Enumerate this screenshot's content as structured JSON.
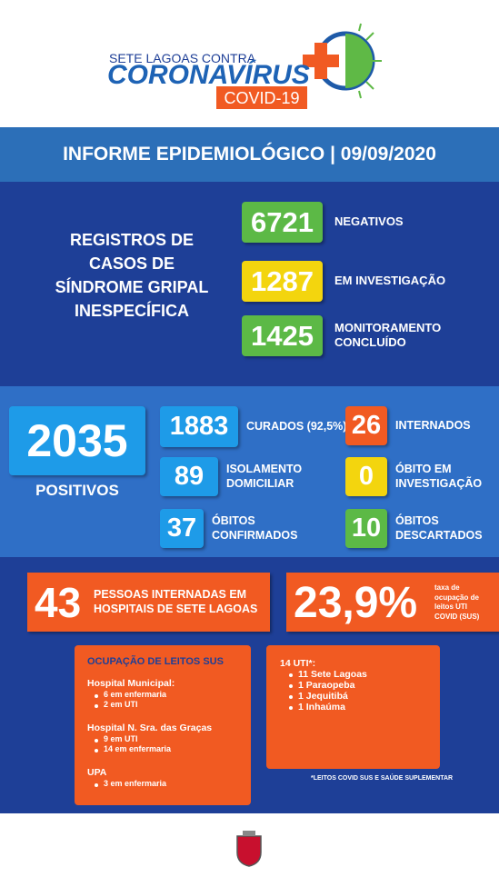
{
  "header": {
    "line1": "SETE LAGOAS CONTRA",
    "brand": "CORONAVÍRUS",
    "tag": "COVID-19"
  },
  "title": "INFORME EPIDEMIOLÓGICO | 09/09/2020",
  "registros": {
    "heading": [
      "REGISTROS DE",
      "CASOS DE",
      "SÍNDROME GRIPAL",
      "INESPECÍFICA"
    ],
    "items": [
      {
        "value": 6721,
        "label": [
          "NEGATIVOS"
        ]
      },
      {
        "value": 1287,
        "label": [
          "EM INVESTIGAÇÃO"
        ]
      },
      {
        "value": 1425,
        "label": [
          "MONITORAMENTO",
          "CONCLUÍDO"
        ]
      }
    ]
  },
  "positivos": {
    "total": {
      "value": 2035,
      "label": "POSITIVOS"
    },
    "items": [
      {
        "value": 1883,
        "label": [
          "CURADOS (92,5%)"
        ]
      },
      {
        "value": 89,
        "label": [
          "ISOLAMENTO",
          "DOMICILIAR"
        ]
      },
      {
        "value": 37,
        "label": [
          "ÓBITOS",
          "CONFIRMADOS"
        ]
      },
      {
        "value": 26,
        "label": [
          "INTERNADOS"
        ]
      },
      {
        "value": 0,
        "label": [
          "ÓBITO EM",
          "INVESTIGAÇÃO"
        ]
      },
      {
        "value": 10,
        "label": [
          "ÓBITOS",
          "DESCARTADOS"
        ]
      }
    ]
  },
  "internacoes": {
    "hospitalizados": {
      "value": 43,
      "label": [
        "PESSOAS INTERNADAS EM",
        "HOSPITAIS DE SETE LAGOAS"
      ]
    },
    "ocupacao": {
      "value": "23,9%",
      "label": [
        "taxa de",
        "ocupação de",
        "leitos UTI",
        "COVID (SUS)"
      ]
    }
  },
  "leitos_sus": {
    "title": "OCUPAÇÃO DE LEITOS SUS",
    "groups": [
      {
        "name": "Hospital Municipal:",
        "items": [
          "6 em enfermaria",
          "2 em UTI"
        ]
      },
      {
        "name": "Hospital N. Sra. das Graças",
        "items": [
          "9 em UTI",
          "14 em enfermaria"
        ]
      },
      {
        "name": "UPA",
        "items": [
          "3 em enfermaria"
        ]
      }
    ]
  },
  "uti": {
    "title": "14 UTI*:",
    "items": [
      "11 Sete Lagoas",
      "1 Paraopeba",
      "1 Jequitibá",
      "1 Inhaúma"
    ]
  },
  "footnote": "*LEITOS COVID SUS E SAÚDE SUPLEMENTAR"
}
